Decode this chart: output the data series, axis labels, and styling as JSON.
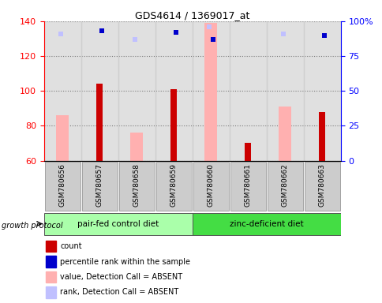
{
  "title": "GDS4614 / 1369017_at",
  "samples": [
    "GSM780656",
    "GSM780657",
    "GSM780658",
    "GSM780659",
    "GSM780660",
    "GSM780661",
    "GSM780662",
    "GSM780663"
  ],
  "ylim_left": [
    60,
    140
  ],
  "ylim_right": [
    0,
    100
  ],
  "yticks_left": [
    60,
    80,
    100,
    120,
    140
  ],
  "yticks_right": [
    0,
    25,
    50,
    75,
    100
  ],
  "count_values": [
    null,
    104,
    null,
    101,
    null,
    70,
    null,
    88
  ],
  "percentile_rank": [
    null,
    93,
    null,
    92,
    87,
    null,
    null,
    90
  ],
  "value_absent": [
    86,
    null,
    76,
    null,
    139,
    null,
    91,
    null
  ],
  "rank_absent": [
    91,
    null,
    87,
    null,
    96,
    null,
    91,
    null
  ],
  "group1_indices": [
    0,
    1,
    2,
    3
  ],
  "group2_indices": [
    4,
    5,
    6,
    7
  ],
  "group1_label": "pair-fed control diet",
  "group2_label": "zinc-deficient diet",
  "group_header": "growth protocol",
  "count_color": "#cc0000",
  "percentile_color": "#0000cc",
  "value_absent_color": "#ffb0b0",
  "rank_absent_color": "#c0c0ff",
  "sample_bg_color": "#cccccc",
  "group1_bg": "#aaffaa",
  "group2_bg": "#44dd44",
  "legend_labels": [
    "count",
    "percentile rank within the sample",
    "value, Detection Call = ABSENT",
    "rank, Detection Call = ABSENT"
  ]
}
